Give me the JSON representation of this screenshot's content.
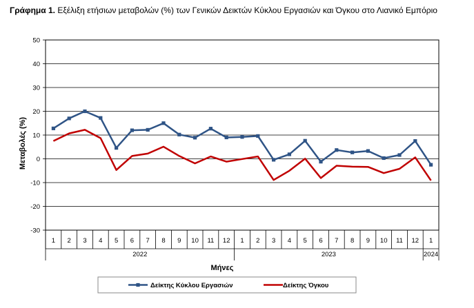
{
  "figure": {
    "title_prefix": "Γράφημα 1.",
    "title_text": "Εξέλιξη ετήσιων μεταβολών (%) των Γενικών Δεικτών Κύκλου Εργασιών και Όγκου στο Λιανικό Εμπόριο"
  },
  "chart_data": {
    "type": "line",
    "ylabel": "Μεταβολές (%)",
    "xlabel": "Μήνες",
    "ylim": [
      -30,
      50
    ],
    "yticks": [
      -30,
      -20,
      -10,
      0,
      10,
      20,
      30,
      40,
      50
    ],
    "grid": true,
    "legend_position": "bottom",
    "months": [
      "1",
      "2",
      "3",
      "4",
      "5",
      "6",
      "7",
      "8",
      "9",
      "10",
      "11",
      "12",
      "1",
      "2",
      "3",
      "4",
      "5",
      "6",
      "7",
      "8",
      "9",
      "10",
      "11",
      "12",
      "1"
    ],
    "year_groups": [
      {
        "label": "2022",
        "count": 12
      },
      {
        "label": "2023",
        "count": 12
      },
      {
        "label": "2024",
        "count": 1
      }
    ],
    "series": [
      {
        "name": "Δείκτης Κύκλου Εργασιών",
        "color": "#2f5486",
        "marker": "square",
        "values": [
          12.8,
          17.0,
          20.0,
          17.2,
          4.6,
          12.0,
          12.2,
          15.0,
          10.2,
          8.9,
          12.7,
          9.0,
          9.2,
          9.6,
          -0.4,
          1.9,
          7.6,
          -1.2,
          3.7,
          2.7,
          3.3,
          0.3,
          1.6,
          7.5,
          -2.5
        ]
      },
      {
        "name": "Δείκτης Όγκου",
        "color": "#c00000",
        "marker": "none",
        "values": [
          7.5,
          10.7,
          12.2,
          8.7,
          -4.7,
          1.2,
          2.2,
          5.1,
          1.2,
          -1.9,
          1.0,
          -1.2,
          -0.1,
          1.0,
          -8.9,
          -5.0,
          0.1,
          -8.1,
          -2.9,
          -3.3,
          -3.4,
          -6.0,
          -4.2,
          0.6,
          -9.1
        ]
      }
    ]
  }
}
